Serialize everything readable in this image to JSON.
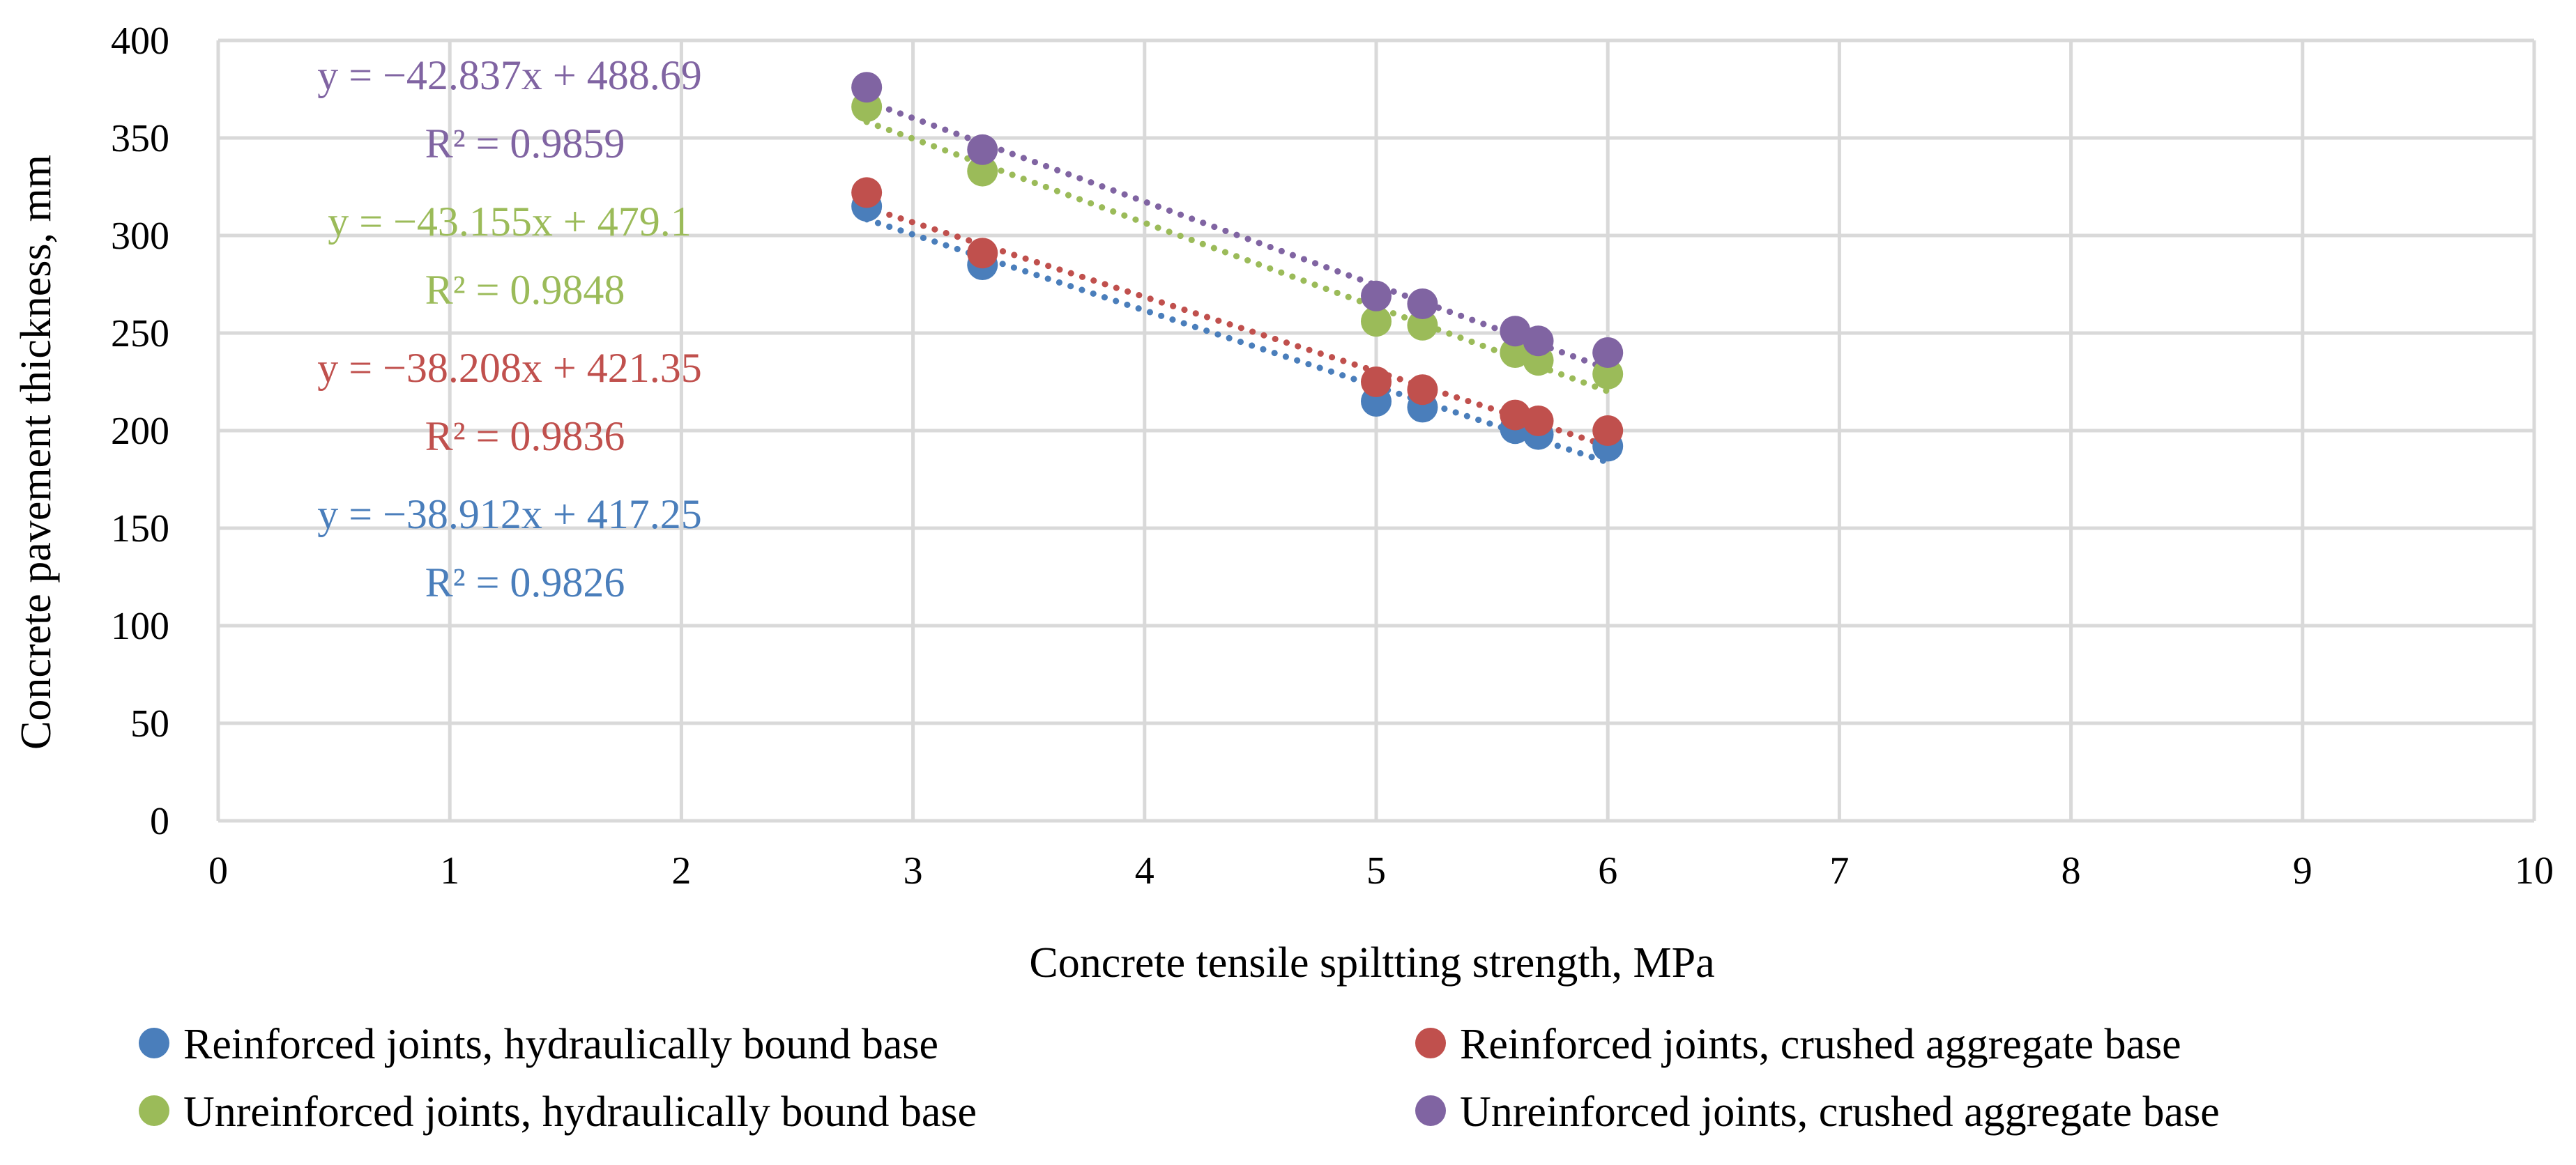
{
  "chart_data": {
    "type": "scatter",
    "title": "",
    "xlabel": "Concrete tensile spiltting strength, MPa",
    "ylabel": "Concrete pavement thickness, mm",
    "xlim": [
      0,
      10
    ],
    "ylim": [
      0,
      400
    ],
    "x_ticks": [
      "0",
      "1",
      "2",
      "3",
      "4",
      "5",
      "6",
      "7",
      "8",
      "9",
      "10"
    ],
    "y_ticks": [
      "0",
      "50",
      "100",
      "150",
      "200",
      "250",
      "300",
      "350",
      "400"
    ],
    "grid": true,
    "legend_position": "bottom",
    "series": [
      {
        "name": "Reinforced joints, hydraulically bound base",
        "color": "#4a7ebb",
        "x": [
          2.8,
          3.3,
          5.0,
          5.2,
          5.6,
          5.7,
          6.0
        ],
        "y": [
          315,
          285,
          215,
          212,
          201,
          198,
          192
        ],
        "trendline": {
          "slope": -38.912,
          "intercept": 417.25,
          "equation": "y = −38.912x + 417.25",
          "r2": "R² = 0.9826"
        }
      },
      {
        "name": "Reinforced joints, crushed aggregate base",
        "color": "#c0504d",
        "x": [
          2.8,
          3.3,
          5.0,
          5.2,
          5.6,
          5.7,
          6.0
        ],
        "y": [
          322,
          291,
          225,
          221,
          208,
          205,
          200
        ],
        "trendline": {
          "slope": -38.208,
          "intercept": 421.35,
          "equation": "y = −38.208x + 421.35",
          "r2": "R² = 0.9836"
        }
      },
      {
        "name": "Unreinforced joints, hydraulically bound base",
        "color": "#9bbb59",
        "x": [
          2.8,
          3.3,
          5.0,
          5.2,
          5.6,
          5.7,
          6.0
        ],
        "y": [
          366,
          333,
          256,
          254,
          240,
          236,
          229
        ],
        "trendline": {
          "slope": -43.155,
          "intercept": 479.1,
          "equation": "y = −43.155x + 479.1",
          "r2": "R² = 0.9848"
        }
      },
      {
        "name": "Unreinforced joints, crushed aggregate base",
        "color": "#8064a2",
        "x": [
          2.8,
          3.3,
          5.0,
          5.2,
          5.6,
          5.7,
          6.0
        ],
        "y": [
          376,
          344,
          269,
          265,
          251,
          246,
          240
        ],
        "trendline": {
          "slope": -42.837,
          "intercept": 488.69,
          "equation": "y = −42.837x + 488.69",
          "r2": "R² = 0.9859"
        }
      }
    ]
  }
}
